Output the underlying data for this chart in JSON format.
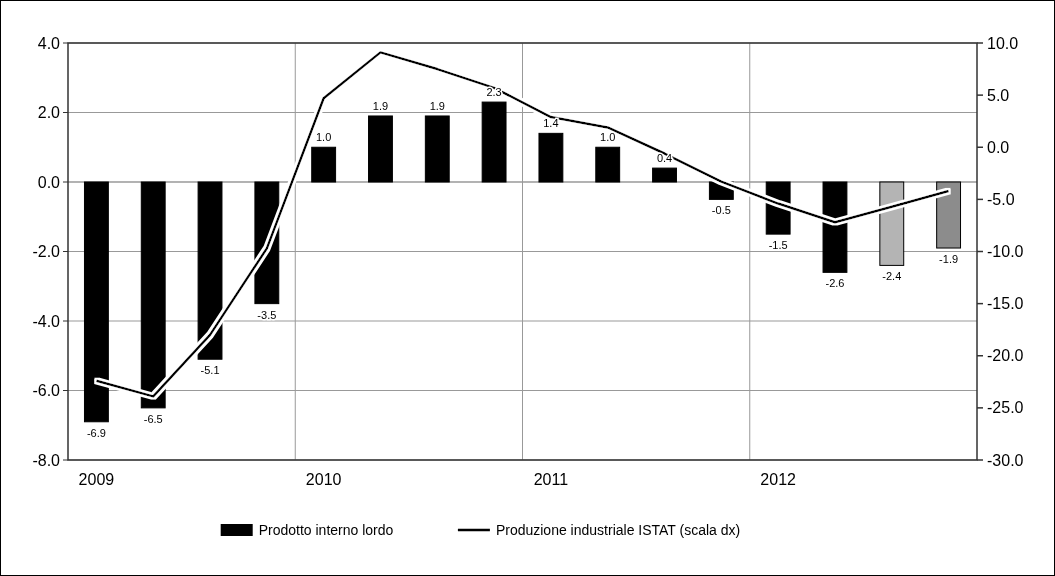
{
  "chart_data": {
    "type": "bar",
    "categories": [
      "2009",
      null,
      null,
      null,
      "2010",
      null,
      null,
      null,
      "2011",
      null,
      null,
      null,
      "2012",
      null,
      null,
      null
    ],
    "series": [
      {
        "name": "Prodotto interno lordo",
        "color": "#000000",
        "colors": [
          "#000000",
          "#000000",
          "#000000",
          "#000000",
          "#000000",
          "#000000",
          "#000000",
          "#000000",
          "#000000",
          "#000000",
          "#000000",
          "#000000",
          "#000000",
          "#000000",
          "#b4b4b4",
          "#8c8c8c"
        ],
        "values": [
          -6.9,
          -6.5,
          -5.1,
          -3.5,
          1.0,
          1.9,
          1.9,
          2.3,
          1.4,
          1.0,
          0.4,
          -0.5,
          -1.5,
          -2.6,
          -2.4,
          -1.9
        ],
        "value_labels": [
          "-6.9",
          "-6.5",
          "-5.1",
          "-3.5",
          "1.0",
          "1.9",
          "1.9",
          "2.3",
          "1.4",
          "1.0",
          "0.4",
          "-0.5",
          "-1.5",
          "-2.6",
          "-2.4",
          "-1.9"
        ]
      },
      {
        "type": "line",
        "name": "Produzione industriale ISTAT (scala dx)",
        "color": "#000000",
        "axis": "y2",
        "values": [
          -22.4,
          -23.9,
          -18.0,
          -9.7,
          4.7,
          9.1,
          7.5,
          5.7,
          2.9,
          1.9,
          -0.6,
          -3.3,
          -5.4,
          -7.2,
          -5.7,
          -4.2
        ]
      }
    ],
    "ylim": [
      -8,
      4
    ],
    "yticks": [
      {
        "value": -8,
        "label": "-8.0"
      },
      {
        "value": -6,
        "label": "-6.0"
      },
      {
        "value": -4,
        "label": "-4.0"
      },
      {
        "value": -2,
        "label": "-2.0"
      },
      {
        "value": 0,
        "label": "0.0"
      },
      {
        "value": 2,
        "label": "2.0"
      },
      {
        "value": 4,
        "label": "4.0"
      }
    ],
    "y2lim": [
      -30,
      10
    ],
    "y2ticks": [
      {
        "value": -30,
        "label": "-30.0"
      },
      {
        "value": -25,
        "label": "-25.0"
      },
      {
        "value": -20,
        "label": "-20.0"
      },
      {
        "value": -15,
        "label": "-15.0"
      },
      {
        "value": -10,
        "label": "-10.0"
      },
      {
        "value": -5,
        "label": "-5.0"
      },
      {
        "value": 0,
        "label": "0.0"
      },
      {
        "value": 5,
        "label": "5.0"
      },
      {
        "value": 10,
        "label": "10.0"
      }
    ],
    "grid": true,
    "legend": "bottom",
    "line_style": "solid",
    "marker": "none"
  }
}
